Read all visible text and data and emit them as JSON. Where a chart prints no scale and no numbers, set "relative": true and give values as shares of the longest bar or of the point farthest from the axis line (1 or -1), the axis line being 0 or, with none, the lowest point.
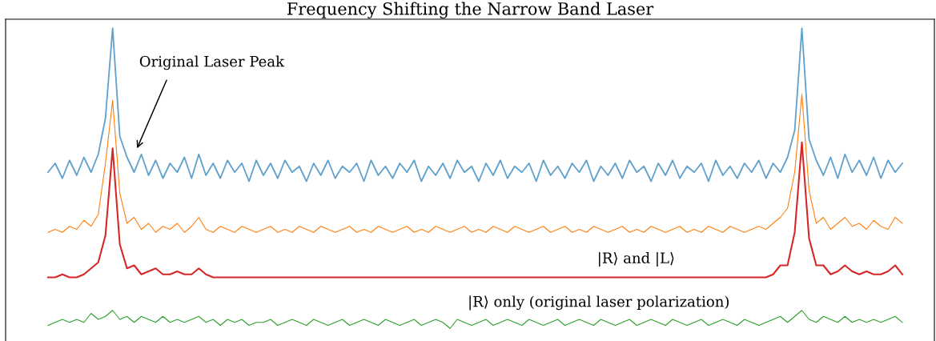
{
  "chart_data": {
    "type": "line",
    "title": "Frequency Shifting the Narrow Band Laser",
    "relative": true,
    "marker": "none",
    "line_style": "solid",
    "categories": [
      null,
      null,
      null,
      null,
      null,
      null,
      null,
      null,
      null,
      null,
      null,
      null,
      null,
      null,
      null,
      null,
      null,
      null,
      null,
      null,
      null,
      null,
      null,
      null,
      null,
      null,
      null,
      null,
      null,
      null,
      null,
      null,
      null,
      null,
      null,
      null,
      null,
      null,
      null,
      null,
      null,
      null,
      null,
      null,
      null,
      null,
      null,
      null,
      null,
      null,
      null,
      null,
      null,
      null,
      null,
      null,
      null,
      null,
      null,
      null,
      null,
      null,
      null,
      null,
      null,
      null,
      null,
      null,
      null,
      null,
      null,
      null,
      null,
      null,
      null,
      null,
      null,
      null,
      null,
      null,
      null,
      null,
      null,
      null,
      null,
      null,
      null,
      null,
      null,
      null,
      null,
      null,
      null,
      null,
      null,
      null,
      null,
      null,
      null,
      null,
      null,
      null,
      null,
      null,
      null,
      null,
      null,
      null,
      null,
      null,
      null,
      null,
      null,
      null,
      null,
      null,
      null,
      null,
      null,
      null
    ],
    "series": [
      {
        "color": "#5fa0cc",
        "values": [
          0.52,
          0.55,
          0.5,
          0.56,
          0.51,
          0.57,
          0.52,
          0.58,
          0.7,
          1.0,
          0.64,
          0.57,
          0.52,
          0.58,
          0.51,
          0.56,
          0.5,
          0.55,
          0.52,
          0.57,
          0.5,
          0.58,
          0.51,
          0.55,
          0.5,
          0.56,
          0.52,
          0.55,
          0.49,
          0.56,
          0.51,
          0.55,
          0.5,
          0.56,
          0.52,
          0.54,
          0.49,
          0.55,
          0.51,
          0.56,
          0.5,
          0.54,
          0.52,
          0.55,
          0.49,
          0.56,
          0.51,
          0.54,
          0.5,
          0.55,
          0.52,
          0.56,
          0.49,
          0.54,
          0.51,
          0.55,
          0.5,
          0.56,
          0.52,
          0.54,
          0.49,
          0.55,
          0.51,
          0.56,
          0.5,
          0.54,
          0.52,
          0.55,
          0.49,
          0.56,
          0.51,
          0.54,
          0.5,
          0.55,
          0.52,
          0.56,
          0.49,
          0.54,
          0.51,
          0.55,
          0.5,
          0.56,
          0.52,
          0.54,
          0.49,
          0.55,
          0.51,
          0.56,
          0.5,
          0.54,
          0.52,
          0.55,
          0.49,
          0.56,
          0.51,
          0.54,
          0.5,
          0.55,
          0.52,
          0.56,
          0.5,
          0.55,
          0.52,
          0.57,
          0.66,
          1.0,
          0.63,
          0.56,
          0.51,
          0.57,
          0.5,
          0.58,
          0.52,
          0.56,
          0.51,
          0.57,
          0.5,
          0.56,
          0.52,
          0.55
        ]
      },
      {
        "color": "#ff7f0e",
        "values": [
          0.32,
          0.33,
          0.32,
          0.34,
          0.33,
          0.36,
          0.34,
          0.38,
          0.55,
          0.76,
          0.45,
          0.35,
          0.37,
          0.33,
          0.35,
          0.32,
          0.34,
          0.33,
          0.35,
          0.32,
          0.34,
          0.37,
          0.33,
          0.32,
          0.34,
          0.33,
          0.32,
          0.34,
          0.33,
          0.32,
          0.33,
          0.34,
          0.32,
          0.33,
          0.32,
          0.34,
          0.33,
          0.32,
          0.34,
          0.33,
          0.32,
          0.33,
          0.34,
          0.32,
          0.33,
          0.32,
          0.34,
          0.33,
          0.32,
          0.33,
          0.34,
          0.32,
          0.33,
          0.32,
          0.34,
          0.33,
          0.32,
          0.33,
          0.34,
          0.32,
          0.33,
          0.32,
          0.34,
          0.33,
          0.32,
          0.34,
          0.33,
          0.32,
          0.33,
          0.34,
          0.32,
          0.33,
          0.34,
          0.32,
          0.33,
          0.32,
          0.34,
          0.33,
          0.32,
          0.33,
          0.34,
          0.32,
          0.33,
          0.32,
          0.34,
          0.33,
          0.32,
          0.33,
          0.34,
          0.32,
          0.33,
          0.32,
          0.34,
          0.33,
          0.32,
          0.34,
          0.33,
          0.32,
          0.33,
          0.34,
          0.33,
          0.35,
          0.37,
          0.4,
          0.52,
          0.78,
          0.46,
          0.35,
          0.37,
          0.33,
          0.35,
          0.37,
          0.34,
          0.35,
          0.33,
          0.36,
          0.34,
          0.33,
          0.37,
          0.35
        ]
      },
      {
        "color": "#d62728",
        "values": [
          0.17,
          0.17,
          0.18,
          0.17,
          0.17,
          0.18,
          0.2,
          0.22,
          0.31,
          0.6,
          0.28,
          0.2,
          0.21,
          0.18,
          0.19,
          0.2,
          0.18,
          0.18,
          0.19,
          0.18,
          0.18,
          0.2,
          0.18,
          0.17,
          0.17,
          0.17,
          0.17,
          0.17,
          0.17,
          0.17,
          0.17,
          0.17,
          0.17,
          0.17,
          0.17,
          0.17,
          0.17,
          0.17,
          0.17,
          0.17,
          0.17,
          0.17,
          0.17,
          0.17,
          0.17,
          0.17,
          0.17,
          0.17,
          0.17,
          0.17,
          0.17,
          0.17,
          0.17,
          0.17,
          0.17,
          0.17,
          0.17,
          0.17,
          0.17,
          0.17,
          0.17,
          0.17,
          0.17,
          0.17,
          0.17,
          0.17,
          0.17,
          0.17,
          0.17,
          0.17,
          0.17,
          0.17,
          0.17,
          0.17,
          0.17,
          0.17,
          0.17,
          0.17,
          0.17,
          0.17,
          0.17,
          0.17,
          0.17,
          0.17,
          0.17,
          0.17,
          0.17,
          0.17,
          0.17,
          0.17,
          0.17,
          0.17,
          0.17,
          0.17,
          0.17,
          0.17,
          0.17,
          0.17,
          0.17,
          0.17,
          0.17,
          0.18,
          0.21,
          0.21,
          0.32,
          0.62,
          0.3,
          0.21,
          0.21,
          0.18,
          0.19,
          0.21,
          0.19,
          0.18,
          0.19,
          0.18,
          0.18,
          0.19,
          0.21,
          0.18
        ]
      },
      {
        "color": "#2ca02c",
        "values": [
          0.01,
          0.02,
          0.03,
          0.02,
          0.03,
          0.02,
          0.05,
          0.03,
          0.04,
          0.06,
          0.03,
          0.04,
          0.02,
          0.04,
          0.03,
          0.02,
          0.04,
          0.02,
          0.03,
          0.02,
          0.03,
          0.04,
          0.02,
          0.03,
          0.01,
          0.03,
          0.02,
          0.03,
          0.01,
          0.02,
          0.02,
          0.03,
          0.01,
          0.02,
          0.03,
          0.02,
          0.01,
          0.03,
          0.02,
          0.01,
          0.02,
          0.03,
          0.01,
          0.02,
          0.03,
          0.02,
          0.01,
          0.03,
          0.02,
          0.01,
          0.02,
          0.03,
          0.01,
          0.02,
          0.03,
          0.02,
          0.0,
          0.03,
          0.02,
          0.01,
          0.02,
          0.03,
          0.01,
          0.02,
          0.03,
          0.02,
          0.01,
          0.03,
          0.02,
          0.01,
          0.02,
          0.03,
          0.01,
          0.02,
          0.03,
          0.02,
          0.01,
          0.03,
          0.02,
          0.01,
          0.02,
          0.03,
          0.01,
          0.02,
          0.03,
          0.02,
          0.01,
          0.03,
          0.02,
          0.01,
          0.02,
          0.03,
          0.01,
          0.02,
          0.03,
          0.02,
          0.01,
          0.03,
          0.02,
          0.01,
          0.02,
          0.03,
          0.04,
          0.02,
          0.04,
          0.06,
          0.03,
          0.02,
          0.04,
          0.03,
          0.02,
          0.04,
          0.02,
          0.03,
          0.02,
          0.03,
          0.02,
          0.03,
          0.04,
          0.02
        ]
      }
    ],
    "annotations": [
      "Original Laser Peak",
      "|R⟩ and |L⟩",
      "|R⟩ only (original laser polarization)"
    ]
  }
}
